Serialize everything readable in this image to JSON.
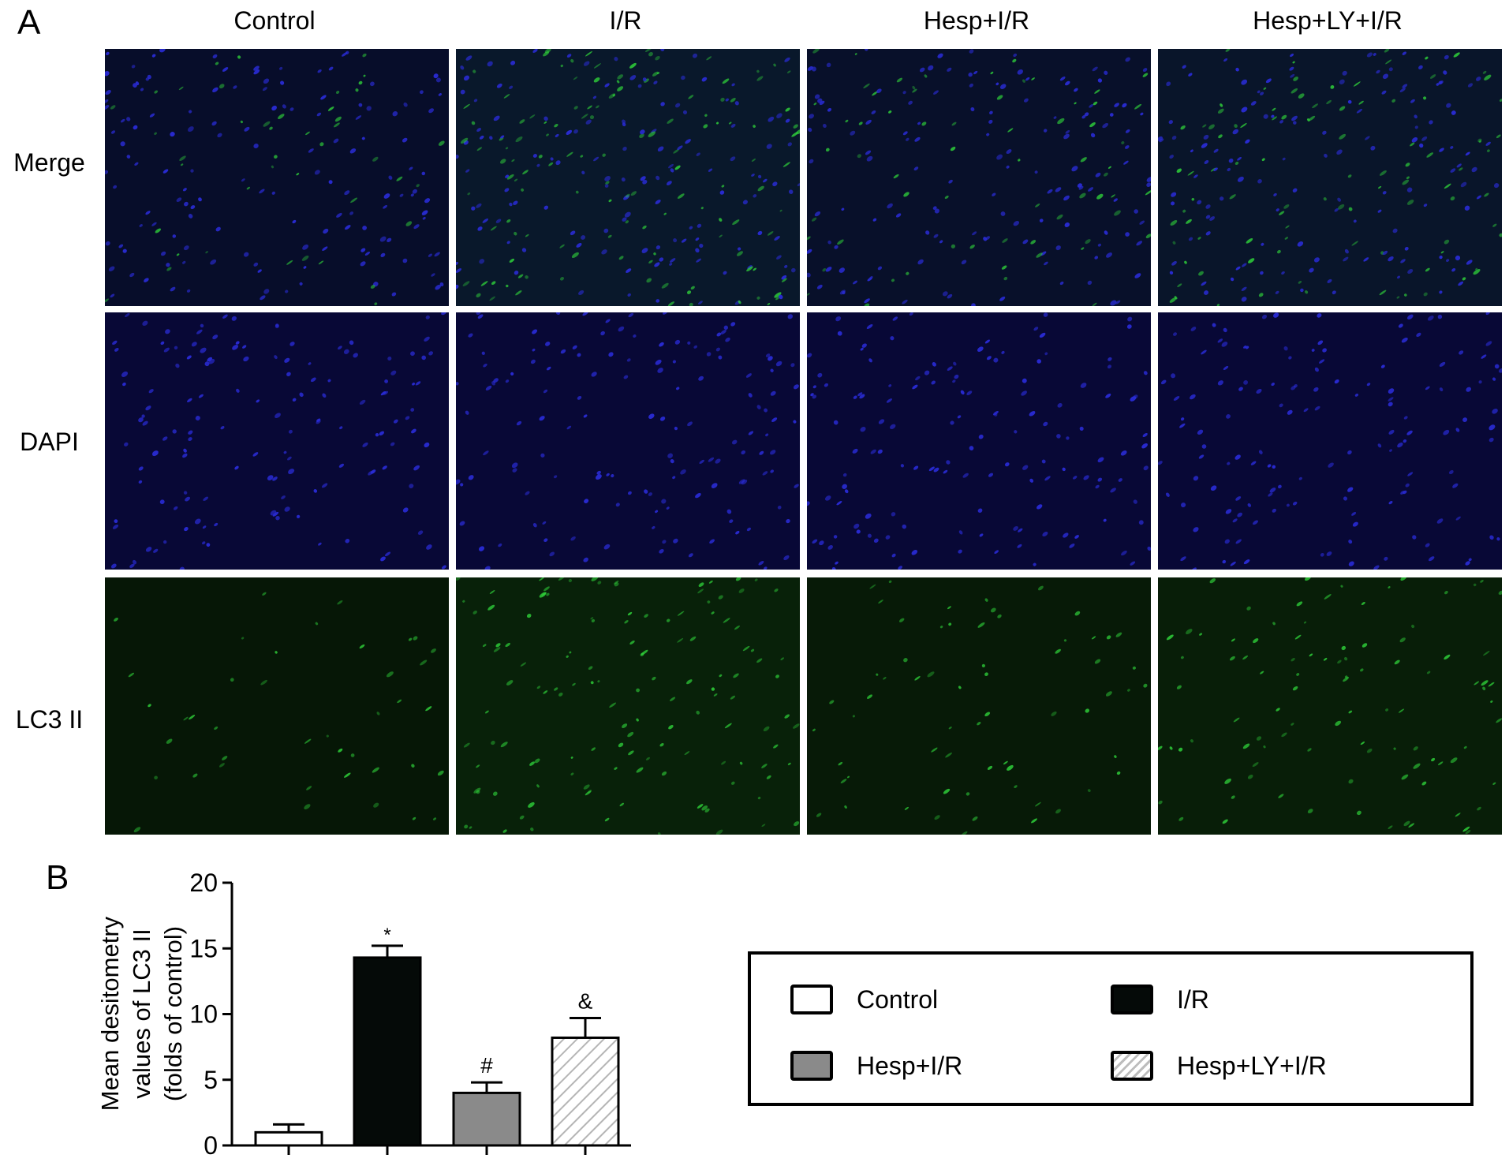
{
  "panel_a": {
    "letter": "A",
    "columns": [
      "Control",
      "I/R",
      "Hesp+I/R",
      "Hesp+LY+I/R"
    ],
    "rows": [
      "Merge",
      "DAPI",
      "LC3 II"
    ]
  },
  "panel_b": {
    "letter": "B"
  },
  "colors": {
    "blue_stain": "#2a2cd8",
    "green_stain": "#2fd23a",
    "black_bar": "#050a08",
    "gray_bar": "#8a8a8a"
  },
  "chart_data": {
    "type": "bar",
    "categories": [
      "Control",
      "I/R",
      "Hesp+I/R",
      "Hesp+LY+I/R"
    ],
    "values": [
      1.0,
      14.3,
      4.0,
      8.2
    ],
    "errors": [
      0.6,
      0.9,
      0.8,
      1.5
    ],
    "annotations": [
      "",
      "*",
      "#",
      "&"
    ],
    "fills": [
      "white",
      "black",
      "gray",
      "hatched"
    ],
    "ylabel_lines": [
      "Mean desitometry",
      "values of LC3 II",
      "(folds of control)"
    ],
    "yticks": [
      0,
      5,
      10,
      15,
      20
    ],
    "ylim": [
      0,
      20
    ],
    "legend": {
      "placement": "right",
      "items": [
        "Control",
        "I/R",
        "Hesp+I/R",
        "Hesp+LY+I/R"
      ]
    }
  }
}
